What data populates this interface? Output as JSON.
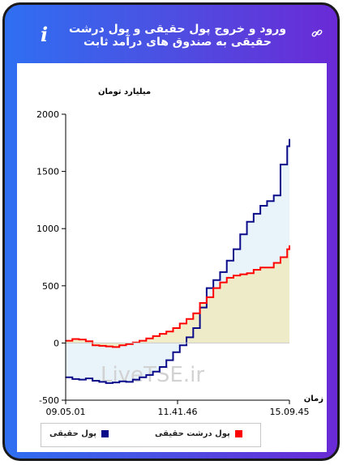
{
  "header": {
    "title": "ورود و خروج پول حقیقی و پول درشت حقیقی به صندوق های درآمد ثابت",
    "info_icon": "info-icon",
    "link_icon": "link-icon"
  },
  "colors": {
    "real_money": "#0b0b8a",
    "big_real_money": "#ff0000",
    "area_blue": "#e6f3fa",
    "area_yellow": "#efeabe"
  },
  "chart_data": {
    "type": "line",
    "ylabel": "میلیارد تومان",
    "xlabel": "زمان",
    "ylim": [
      -500,
      2000
    ],
    "yticks": [
      "2000",
      "1500",
      "1000",
      "500",
      "0",
      "-500"
    ],
    "xticks": [
      "09.05.01",
      "11.41.46",
      "15.09.45"
    ],
    "watermark": "LiveTSE.ir",
    "legend_position": "bottom",
    "grid": false,
    "series": [
      {
        "name": "پول حقیقی",
        "color": "#0b0b8a",
        "x": [
          0,
          0.03,
          0.06,
          0.09,
          0.12,
          0.15,
          0.18,
          0.21,
          0.24,
          0.27,
          0.3,
          0.33,
          0.36,
          0.39,
          0.42,
          0.45,
          0.48,
          0.51,
          0.54,
          0.57,
          0.6,
          0.63,
          0.66,
          0.69,
          0.72,
          0.75,
          0.78,
          0.81,
          0.84,
          0.87,
          0.9,
          0.93,
          0.96,
          0.99,
          1.0
        ],
        "values": [
          -300,
          -315,
          -320,
          -310,
          -330,
          -340,
          -350,
          -345,
          -335,
          -340,
          -320,
          -300,
          -280,
          -250,
          -210,
          -150,
          -80,
          -20,
          50,
          130,
          310,
          480,
          550,
          620,
          720,
          820,
          950,
          1060,
          1130,
          1200,
          1240,
          1290,
          1560,
          1720,
          1780
        ]
      },
      {
        "name": "پول درشت حقیقی",
        "color": "#ff0000",
        "x": [
          0,
          0.03,
          0.06,
          0.09,
          0.12,
          0.15,
          0.18,
          0.21,
          0.24,
          0.27,
          0.3,
          0.33,
          0.36,
          0.39,
          0.42,
          0.45,
          0.48,
          0.51,
          0.54,
          0.57,
          0.6,
          0.63,
          0.66,
          0.69,
          0.72,
          0.75,
          0.78,
          0.81,
          0.84,
          0.87,
          0.9,
          0.93,
          0.96,
          0.99,
          1.0
        ],
        "values": [
          20,
          35,
          30,
          15,
          -20,
          -25,
          -30,
          -35,
          -20,
          -10,
          5,
          20,
          40,
          60,
          80,
          100,
          130,
          170,
          210,
          260,
          350,
          400,
          480,
          530,
          570,
          590,
          600,
          610,
          640,
          660,
          660,
          700,
          750,
          820,
          850
        ]
      }
    ]
  }
}
